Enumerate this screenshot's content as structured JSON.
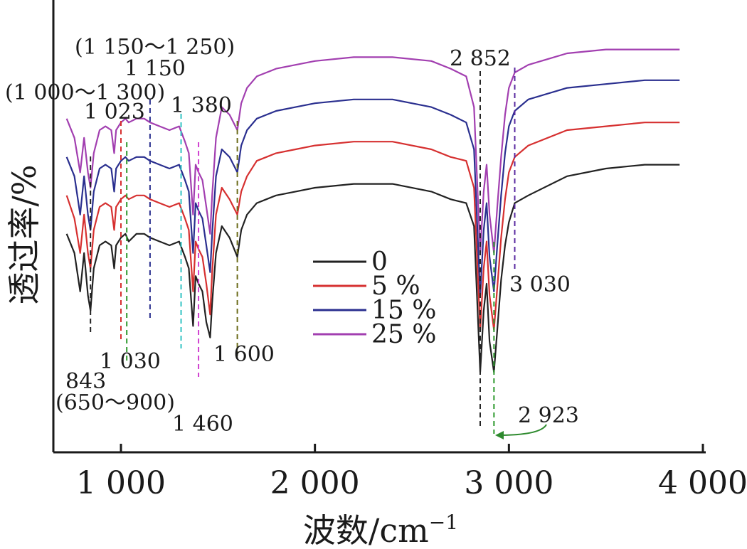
{
  "chart_data": {
    "type": "line",
    "xlabel": "波数/cm",
    "xlabel_sup": "−1",
    "ylabel": "透过率/%",
    "xlim": [
      700,
      4000
    ],
    "xticks": [
      1000,
      2000,
      3000,
      4000
    ],
    "xtick_labels": [
      "1 000",
      "2 000",
      "3 000",
      "4 000"
    ],
    "yticks": [],
    "legend": {
      "position": "center"
    },
    "series": [
      {
        "name": "0",
        "color": "#222222",
        "points": [
          [
            720,
            0.47
          ],
          [
            760,
            0.52
          ],
          [
            790,
            0.62
          ],
          [
            810,
            0.52
          ],
          [
            830,
            0.63
          ],
          [
            843,
            0.67
          ],
          [
            860,
            0.56
          ],
          [
            890,
            0.5
          ],
          [
            920,
            0.49
          ],
          [
            950,
            0.5
          ],
          [
            965,
            0.56
          ],
          [
            975,
            0.5
          ],
          [
            1000,
            0.48
          ],
          [
            1023,
            0.47
          ],
          [
            1040,
            0.49
          ],
          [
            1080,
            0.47
          ],
          [
            1120,
            0.47
          ],
          [
            1150,
            0.48
          ],
          [
            1200,
            0.49
          ],
          [
            1250,
            0.5
          ],
          [
            1300,
            0.49
          ],
          [
            1330,
            0.53
          ],
          [
            1350,
            0.56
          ],
          [
            1372,
            0.71
          ],
          [
            1385,
            0.58
          ],
          [
            1400,
            0.6
          ],
          [
            1420,
            0.62
          ],
          [
            1440,
            0.7
          ],
          [
            1460,
            0.74
          ],
          [
            1470,
            0.65
          ],
          [
            1490,
            0.52
          ],
          [
            1520,
            0.45
          ],
          [
            1560,
            0.48
          ],
          [
            1600,
            0.53
          ],
          [
            1620,
            0.46
          ],
          [
            1650,
            0.42
          ],
          [
            1700,
            0.39
          ],
          [
            1750,
            0.38
          ],
          [
            1800,
            0.37
          ],
          [
            1900,
            0.36
          ],
          [
            2000,
            0.35
          ],
          [
            2200,
            0.34
          ],
          [
            2400,
            0.34
          ],
          [
            2600,
            0.36
          ],
          [
            2700,
            0.38
          ],
          [
            2780,
            0.39
          ],
          [
            2820,
            0.45
          ],
          [
            2852,
            0.83
          ],
          [
            2870,
            0.67
          ],
          [
            2885,
            0.6
          ],
          [
            2900,
            0.75
          ],
          [
            2923,
            0.83
          ],
          [
            2940,
            0.72
          ],
          [
            2960,
            0.59
          ],
          [
            2980,
            0.5
          ],
          [
            3000,
            0.44
          ],
          [
            3030,
            0.39
          ],
          [
            3100,
            0.37
          ],
          [
            3300,
            0.32
          ],
          [
            3500,
            0.3
          ],
          [
            3700,
            0.29
          ],
          [
            3880,
            0.29
          ]
        ]
      },
      {
        "name": "5 %",
        "color": "#d63030",
        "points": [
          [
            720,
            0.37
          ],
          [
            760,
            0.43
          ],
          [
            790,
            0.52
          ],
          [
            810,
            0.42
          ],
          [
            830,
            0.52
          ],
          [
            843,
            0.56
          ],
          [
            860,
            0.46
          ],
          [
            890,
            0.4
          ],
          [
            920,
            0.39
          ],
          [
            950,
            0.4
          ],
          [
            965,
            0.46
          ],
          [
            975,
            0.4
          ],
          [
            1000,
            0.38
          ],
          [
            1023,
            0.37
          ],
          [
            1040,
            0.38
          ],
          [
            1080,
            0.37
          ],
          [
            1120,
            0.37
          ],
          [
            1150,
            0.38
          ],
          [
            1200,
            0.39
          ],
          [
            1250,
            0.4
          ],
          [
            1300,
            0.39
          ],
          [
            1330,
            0.43
          ],
          [
            1350,
            0.46
          ],
          [
            1372,
            0.62
          ],
          [
            1385,
            0.49
          ],
          [
            1400,
            0.51
          ],
          [
            1420,
            0.53
          ],
          [
            1440,
            0.6
          ],
          [
            1460,
            0.68
          ],
          [
            1470,
            0.57
          ],
          [
            1490,
            0.42
          ],
          [
            1520,
            0.35
          ],
          [
            1560,
            0.38
          ],
          [
            1600,
            0.42
          ],
          [
            1620,
            0.36
          ],
          [
            1650,
            0.32
          ],
          [
            1700,
            0.28
          ],
          [
            1750,
            0.27
          ],
          [
            1800,
            0.26
          ],
          [
            1900,
            0.25
          ],
          [
            2000,
            0.24
          ],
          [
            2200,
            0.23
          ],
          [
            2400,
            0.23
          ],
          [
            2600,
            0.25
          ],
          [
            2700,
            0.27
          ],
          [
            2780,
            0.28
          ],
          [
            2820,
            0.35
          ],
          [
            2852,
            0.72
          ],
          [
            2870,
            0.56
          ],
          [
            2885,
            0.49
          ],
          [
            2900,
            0.63
          ],
          [
            2923,
            0.72
          ],
          [
            2940,
            0.61
          ],
          [
            2960,
            0.48
          ],
          [
            2980,
            0.38
          ],
          [
            3000,
            0.31
          ],
          [
            3030,
            0.27
          ],
          [
            3100,
            0.24
          ],
          [
            3300,
            0.2
          ],
          [
            3500,
            0.19
          ],
          [
            3700,
            0.18
          ],
          [
            3880,
            0.18
          ]
        ]
      },
      {
        "name": "15 %",
        "color": "#2a2f8f",
        "points": [
          [
            720,
            0.27
          ],
          [
            760,
            0.32
          ],
          [
            790,
            0.42
          ],
          [
            810,
            0.32
          ],
          [
            830,
            0.42
          ],
          [
            843,
            0.46
          ],
          [
            860,
            0.36
          ],
          [
            890,
            0.3
          ],
          [
            920,
            0.29
          ],
          [
            950,
            0.3
          ],
          [
            965,
            0.36
          ],
          [
            975,
            0.3
          ],
          [
            1000,
            0.28
          ],
          [
            1023,
            0.27
          ],
          [
            1040,
            0.28
          ],
          [
            1080,
            0.27
          ],
          [
            1120,
            0.27
          ],
          [
            1150,
            0.28
          ],
          [
            1200,
            0.29
          ],
          [
            1250,
            0.3
          ],
          [
            1300,
            0.29
          ],
          [
            1330,
            0.33
          ],
          [
            1350,
            0.36
          ],
          [
            1372,
            0.52
          ],
          [
            1385,
            0.39
          ],
          [
            1400,
            0.41
          ],
          [
            1420,
            0.43
          ],
          [
            1440,
            0.5
          ],
          [
            1460,
            0.57
          ],
          [
            1470,
            0.47
          ],
          [
            1490,
            0.32
          ],
          [
            1520,
            0.25
          ],
          [
            1560,
            0.27
          ],
          [
            1600,
            0.31
          ],
          [
            1620,
            0.24
          ],
          [
            1650,
            0.2
          ],
          [
            1700,
            0.17
          ],
          [
            1750,
            0.16
          ],
          [
            1800,
            0.15
          ],
          [
            1900,
            0.14
          ],
          [
            2000,
            0.13
          ],
          [
            2200,
            0.12
          ],
          [
            2400,
            0.12
          ],
          [
            2600,
            0.14
          ],
          [
            2700,
            0.16
          ],
          [
            2780,
            0.18
          ],
          [
            2820,
            0.25
          ],
          [
            2852,
            0.63
          ],
          [
            2870,
            0.46
          ],
          [
            2885,
            0.39
          ],
          [
            2900,
            0.53
          ],
          [
            2923,
            0.62
          ],
          [
            2940,
            0.5
          ],
          [
            2960,
            0.37
          ],
          [
            2980,
            0.26
          ],
          [
            3000,
            0.19
          ],
          [
            3030,
            0.15
          ],
          [
            3100,
            0.12
          ],
          [
            3300,
            0.09
          ],
          [
            3500,
            0.08
          ],
          [
            3700,
            0.07
          ],
          [
            3880,
            0.07
          ]
        ]
      },
      {
        "name": "25 %",
        "color": "#a23fb0",
        "points": [
          [
            720,
            0.17
          ],
          [
            760,
            0.22
          ],
          [
            790,
            0.31
          ],
          [
            810,
            0.22
          ],
          [
            830,
            0.31
          ],
          [
            843,
            0.35
          ],
          [
            860,
            0.26
          ],
          [
            890,
            0.2
          ],
          [
            920,
            0.19
          ],
          [
            950,
            0.2
          ],
          [
            965,
            0.26
          ],
          [
            975,
            0.2
          ],
          [
            1000,
            0.18
          ],
          [
            1023,
            0.17
          ],
          [
            1040,
            0.18
          ],
          [
            1080,
            0.17
          ],
          [
            1120,
            0.17
          ],
          [
            1150,
            0.18
          ],
          [
            1200,
            0.19
          ],
          [
            1250,
            0.2
          ],
          [
            1300,
            0.19
          ],
          [
            1330,
            0.23
          ],
          [
            1350,
            0.26
          ],
          [
            1372,
            0.42
          ],
          [
            1385,
            0.29
          ],
          [
            1400,
            0.31
          ],
          [
            1420,
            0.33
          ],
          [
            1440,
            0.4
          ],
          [
            1460,
            0.47
          ],
          [
            1470,
            0.37
          ],
          [
            1490,
            0.22
          ],
          [
            1520,
            0.14
          ],
          [
            1560,
            0.16
          ],
          [
            1600,
            0.2
          ],
          [
            1620,
            0.13
          ],
          [
            1650,
            0.09
          ],
          [
            1700,
            0.06
          ],
          [
            1750,
            0.05
          ],
          [
            1800,
            0.04
          ],
          [
            1900,
            0.03
          ],
          [
            2000,
            0.02
          ],
          [
            2200,
            0.01
          ],
          [
            2400,
            0.01
          ],
          [
            2600,
            0.02
          ],
          [
            2700,
            0.04
          ],
          [
            2780,
            0.06
          ],
          [
            2820,
            0.14
          ],
          [
            2852,
            0.52
          ],
          [
            2870,
            0.36
          ],
          [
            2885,
            0.29
          ],
          [
            2900,
            0.42
          ],
          [
            2923,
            0.52
          ],
          [
            2940,
            0.4
          ],
          [
            2960,
            0.27
          ],
          [
            2980,
            0.16
          ],
          [
            3000,
            0.09
          ],
          [
            3030,
            0.05
          ],
          [
            3100,
            0.03
          ],
          [
            3300,
            0.0
          ],
          [
            3500,
            -0.01
          ],
          [
            3700,
            -0.01
          ],
          [
            3880,
            -0.01
          ]
        ]
      }
    ],
    "reference_lines": [
      {
        "x": 843,
        "color": "#222222"
      },
      {
        "x": 1000,
        "color": "#d63030"
      },
      {
        "x": 1030,
        "color": "#2e9a2e"
      },
      {
        "x": 1150,
        "color": "#2a2f8f"
      },
      {
        "x": 1310,
        "color": "#33c4c4"
      },
      {
        "x": 1400,
        "color": "#d03fd0"
      },
      {
        "x": 1600,
        "color": "#6b6b1a"
      },
      {
        "x": 2852,
        "color": "#222222"
      },
      {
        "x": 2923,
        "color": "#2e9a2e"
      },
      {
        "x": 3030,
        "color": "#5a2aa0"
      }
    ],
    "annotations": [
      {
        "text": "(1 150～1 250)"
      },
      {
        "text": "1 150"
      },
      {
        "text": "(1 000～1 300)"
      },
      {
        "text": "1 023"
      },
      {
        "text": "1 380"
      },
      {
        "text": "2 852"
      },
      {
        "text": "3 030"
      },
      {
        "text": "1 600"
      },
      {
        "text": "1 030"
      },
      {
        "text": "843"
      },
      {
        "text": "(650～900)"
      },
      {
        "text": "1 460"
      },
      {
        "text": "2 923"
      }
    ]
  }
}
